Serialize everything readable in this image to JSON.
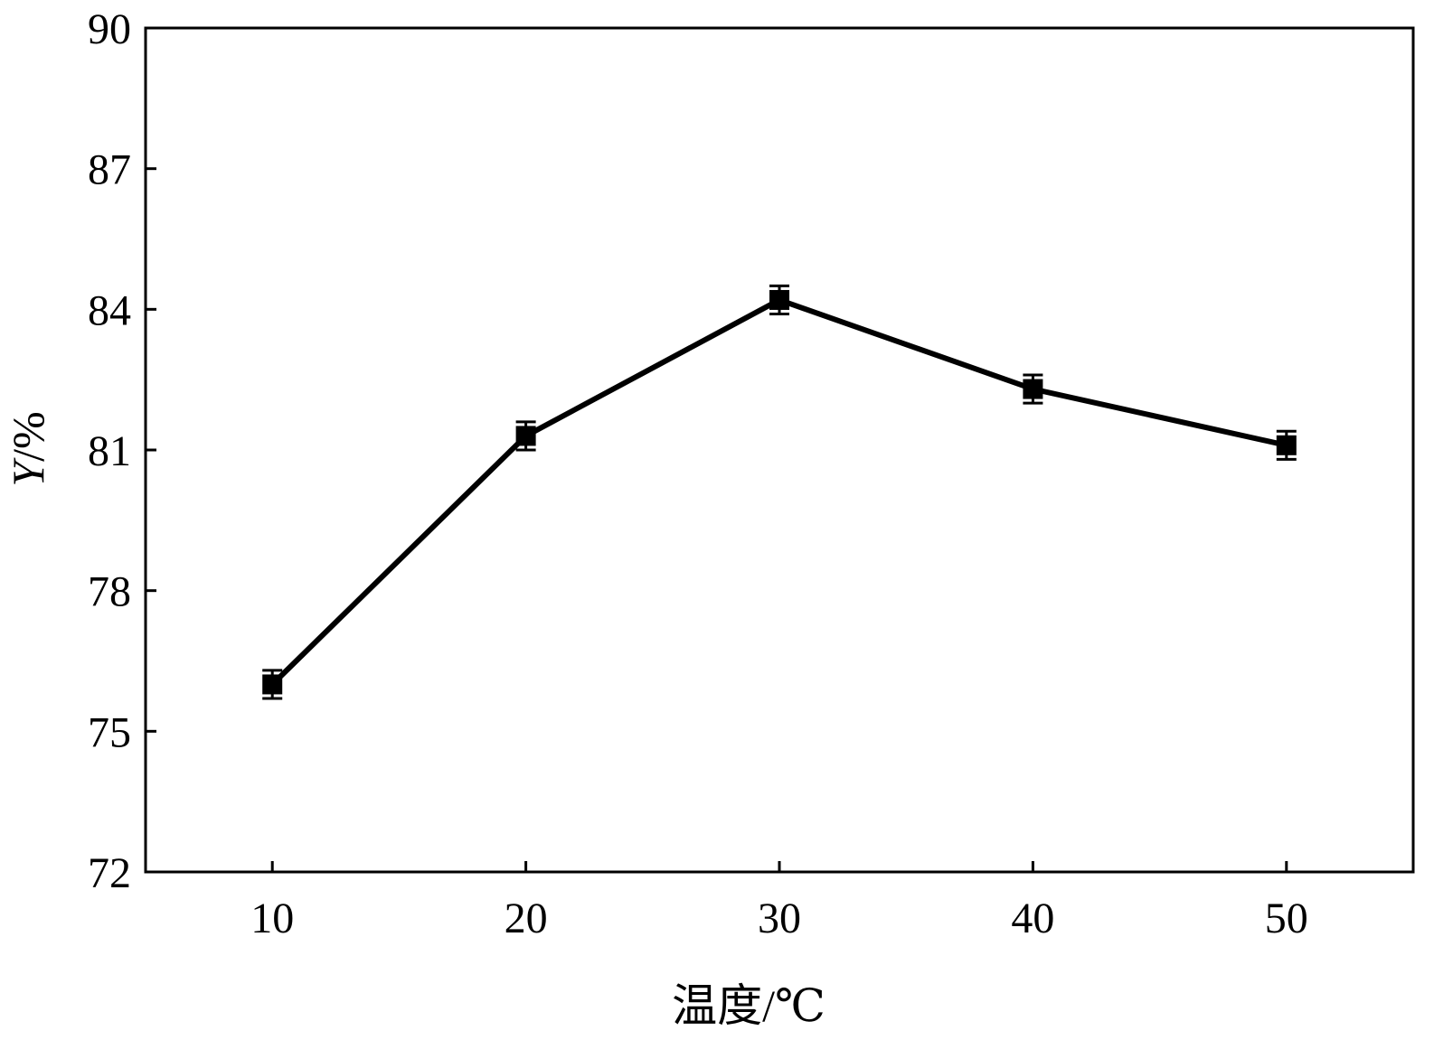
{
  "chart_data": {
    "type": "line",
    "xlabel": "温度/℃",
    "ylabel": "Y/%",
    "ylabel_var": "Y",
    "ylabel_unit": "/%",
    "xlim": [
      5,
      55
    ],
    "ylim": [
      72,
      90
    ],
    "xticks": [
      10,
      20,
      30,
      40,
      50
    ],
    "yticks": [
      72,
      75,
      78,
      81,
      84,
      87,
      90
    ],
    "grid": false,
    "series": [
      {
        "x": [
          10,
          20,
          30,
          40,
          50
        ],
        "y": [
          76.0,
          81.3,
          84.2,
          82.3,
          81.1
        ],
        "error": [
          0.3,
          0.3,
          0.3,
          0.3,
          0.3
        ],
        "marker": "square",
        "color": "#000000"
      }
    ]
  }
}
